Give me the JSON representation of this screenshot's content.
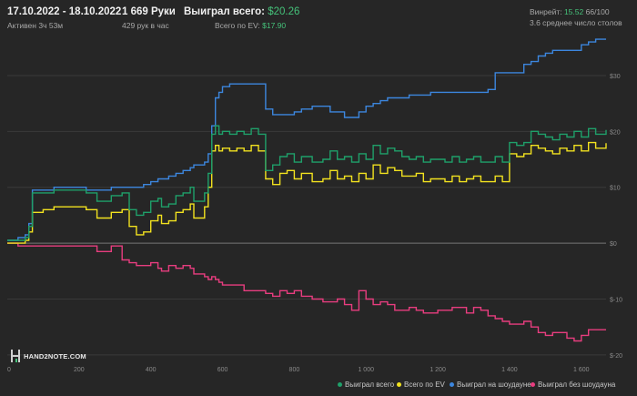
{
  "header": {
    "date_range": "17.10.2022 - 18.10.2022",
    "active": "Активен 3ч 53м",
    "hands_label": "1 669 Руки",
    "hands_rate": "429 рук в час",
    "won_total_label": "Выиграл всего:",
    "won_total_value": "$20.26",
    "ev_total_label": "Всего по EV:",
    "ev_total_value": "$17.90",
    "winrate_label": "Винрейт:",
    "winrate_value": "15.52",
    "winrate_hands": "66/100",
    "avg_tables": "3.6 среднее число столов"
  },
  "logo": {
    "text": "HAND2NOTE.COM"
  },
  "colors": {
    "background": "#262626",
    "grid": "#3a3a3a",
    "zero_line": "#777777",
    "won_total": "#1fa06a",
    "ev": "#f2e21f",
    "showdown": "#3c86de",
    "non_showdown": "#e83d7f",
    "green_text": "#45c27a"
  },
  "chart_data": {
    "type": "line",
    "title": "",
    "xlabel": "",
    "ylabel": "",
    "xlim": [
      0,
      1669
    ],
    "ylim": [
      -21,
      37
    ],
    "x_ticks": [
      0,
      200,
      400,
      600,
      800,
      1000,
      1200,
      1400,
      1600
    ],
    "x_tick_labels": [
      "0",
      "200",
      "400",
      "600",
      "800",
      "1 000",
      "1 200",
      "1 400",
      "1 600"
    ],
    "y_ticks": [
      -20,
      -10,
      0,
      10,
      20,
      30
    ],
    "y_tick_labels": [
      "$-20",
      "$-10",
      "$0",
      "$10",
      "$20",
      "$30"
    ],
    "grid": true,
    "legend_position": "bottom-right",
    "series": [
      {
        "name": "Выиграл всего",
        "key": "won_total",
        "x": [
          0,
          30,
          50,
          60,
          70,
          100,
          130,
          180,
          220,
          250,
          290,
          320,
          340,
          360,
          380,
          400,
          420,
          430,
          450,
          470,
          490,
          510,
          520,
          550,
          560,
          570,
          580,
          590,
          600,
          620,
          640,
          660,
          680,
          700,
          720,
          740,
          760,
          780,
          800,
          820,
          850,
          880,
          900,
          920,
          940,
          960,
          980,
          1000,
          1020,
          1040,
          1060,
          1080,
          1100,
          1120,
          1140,
          1160,
          1180,
          1200,
          1220,
          1240,
          1260,
          1280,
          1300,
          1320,
          1340,
          1360,
          1380,
          1400,
          1420,
          1440,
          1460,
          1480,
          1500,
          1520,
          1540,
          1560,
          1580,
          1600,
          1620,
          1640,
          1669
        ],
        "y": [
          0.5,
          0.5,
          1.0,
          3.0,
          9.0,
          9.0,
          9.5,
          9.5,
          9.0,
          7.5,
          8.5,
          9.0,
          6.0,
          5.0,
          5.5,
          7.5,
          8.0,
          6.5,
          7.0,
          8.5,
          9.0,
          10.0,
          7.5,
          9.0,
          12.5,
          19.5,
          21.0,
          19.5,
          20.0,
          19.5,
          20.0,
          19.5,
          20.5,
          19.5,
          13.0,
          14.0,
          15.5,
          16.0,
          14.5,
          15.5,
          14.5,
          15.0,
          16.5,
          15.0,
          15.5,
          14.5,
          16.0,
          15.0,
          17.5,
          16.0,
          17.0,
          16.5,
          15.5,
          15.0,
          15.5,
          14.5,
          15.0,
          15.0,
          14.5,
          15.5,
          14.5,
          15.0,
          15.5,
          14.5,
          14.5,
          15.5,
          14.5,
          18.0,
          17.5,
          18.0,
          20.0,
          19.5,
          19.0,
          18.5,
          19.5,
          19.0,
          20.0,
          19.0,
          20.5,
          19.5,
          20.26
        ]
      },
      {
        "name": "Всего по EV",
        "key": "ev",
        "x": [
          0,
          30,
          50,
          60,
          70,
          100,
          130,
          180,
          220,
          250,
          290,
          320,
          340,
          360,
          380,
          400,
          420,
          430,
          450,
          470,
          490,
          510,
          520,
          550,
          560,
          570,
          580,
          590,
          600,
          620,
          640,
          660,
          680,
          700,
          720,
          740,
          760,
          780,
          800,
          820,
          850,
          880,
          900,
          920,
          940,
          960,
          980,
          1000,
          1020,
          1040,
          1060,
          1080,
          1100,
          1120,
          1140,
          1160,
          1180,
          1200,
          1220,
          1240,
          1260,
          1280,
          1300,
          1320,
          1340,
          1360,
          1380,
          1400,
          1420,
          1440,
          1460,
          1480,
          1500,
          1520,
          1540,
          1560,
          1580,
          1600,
          1620,
          1640,
          1669
        ],
        "y": [
          0.0,
          0.0,
          0.5,
          2.0,
          5.5,
          6.0,
          6.5,
          6.5,
          6.0,
          4.5,
          5.5,
          6.0,
          3.0,
          1.5,
          2.0,
          4.0,
          5.0,
          3.5,
          4.0,
          5.5,
          6.0,
          7.0,
          4.5,
          6.5,
          10.0,
          16.5,
          17.5,
          16.5,
          17.0,
          16.5,
          17.0,
          16.5,
          17.5,
          16.5,
          11.5,
          10.5,
          12.5,
          13.0,
          11.5,
          12.5,
          11.0,
          11.5,
          13.0,
          11.5,
          12.0,
          11.0,
          12.5,
          11.5,
          14.0,
          12.5,
          13.5,
          13.0,
          12.0,
          12.0,
          12.5,
          11.0,
          11.5,
          11.5,
          11.0,
          12.0,
          11.0,
          11.5,
          12.0,
          11.0,
          11.0,
          12.0,
          11.0,
          16.0,
          15.5,
          16.0,
          17.5,
          17.0,
          16.5,
          16.0,
          17.0,
          16.5,
          17.5,
          16.5,
          18.0,
          17.0,
          17.9
        ]
      },
      {
        "name": "Выиграл на шоудауне",
        "key": "showdown",
        "x": [
          0,
          30,
          50,
          60,
          70,
          100,
          130,
          180,
          220,
          250,
          290,
          320,
          340,
          360,
          380,
          400,
          420,
          430,
          450,
          470,
          490,
          510,
          520,
          550,
          560,
          570,
          580,
          590,
          600,
          620,
          640,
          660,
          680,
          700,
          720,
          740,
          760,
          780,
          800,
          820,
          850,
          880,
          900,
          920,
          940,
          960,
          980,
          1000,
          1020,
          1040,
          1060,
          1080,
          1100,
          1120,
          1140,
          1160,
          1180,
          1200,
          1220,
          1240,
          1260,
          1280,
          1300,
          1320,
          1340,
          1360,
          1380,
          1400,
          1420,
          1440,
          1460,
          1480,
          1500,
          1520,
          1540,
          1560,
          1580,
          1600,
          1620,
          1640,
          1669
        ],
        "y": [
          0.5,
          1.0,
          1.5,
          3.5,
          9.5,
          9.5,
          10.0,
          10.0,
          9.5,
          9.5,
          10.0,
          10.0,
          10.0,
          10.0,
          10.5,
          11.0,
          11.5,
          11.5,
          12.0,
          12.5,
          13.0,
          13.5,
          14.0,
          14.5,
          16.0,
          21.0,
          26.0,
          27.0,
          28.0,
          28.5,
          28.5,
          28.5,
          28.5,
          28.5,
          24.0,
          23.0,
          23.0,
          23.0,
          23.5,
          24.0,
          24.5,
          24.5,
          23.5,
          23.5,
          22.5,
          22.5,
          23.5,
          24.5,
          25.0,
          25.5,
          26.0,
          26.0,
          26.0,
          26.5,
          26.5,
          26.5,
          27.0,
          27.0,
          27.0,
          27.0,
          27.0,
          27.0,
          27.0,
          27.0,
          27.5,
          30.5,
          30.5,
          30.5,
          30.5,
          32.0,
          32.5,
          33.5,
          34.0,
          34.5,
          34.5,
          34.5,
          34.5,
          35.5,
          36.0,
          36.5,
          36.5
        ]
      },
      {
        "name": "Выиграл без шоудауна",
        "key": "non_showdown",
        "x": [
          0,
          30,
          50,
          60,
          70,
          100,
          130,
          180,
          220,
          250,
          290,
          320,
          340,
          360,
          380,
          400,
          420,
          430,
          450,
          470,
          490,
          510,
          520,
          550,
          560,
          570,
          580,
          590,
          600,
          620,
          640,
          660,
          680,
          700,
          720,
          740,
          760,
          780,
          800,
          820,
          850,
          880,
          900,
          920,
          940,
          960,
          980,
          1000,
          1020,
          1040,
          1060,
          1080,
          1100,
          1120,
          1140,
          1160,
          1180,
          1200,
          1220,
          1240,
          1260,
          1280,
          1300,
          1320,
          1340,
          1360,
          1380,
          1400,
          1420,
          1440,
          1460,
          1480,
          1500,
          1520,
          1540,
          1560,
          1580,
          1600,
          1620,
          1640,
          1669
        ],
        "y": [
          0.0,
          -0.5,
          -0.5,
          -0.5,
          -0.5,
          -0.5,
          -0.5,
          -0.5,
          -0.5,
          -1.5,
          -0.5,
          -3.0,
          -3.5,
          -4.0,
          -4.0,
          -3.5,
          -4.5,
          -5.0,
          -4.0,
          -4.5,
          -4.0,
          -4.5,
          -5.5,
          -6.0,
          -6.5,
          -6.0,
          -6.5,
          -7.0,
          -7.5,
          -7.5,
          -7.5,
          -8.5,
          -8.5,
          -8.5,
          -9.0,
          -9.5,
          -8.5,
          -9.0,
          -8.5,
          -9.5,
          -10.0,
          -10.5,
          -10.5,
          -10.0,
          -11.0,
          -12.0,
          -8.5,
          -10.0,
          -11.0,
          -10.5,
          -11.0,
          -12.0,
          -12.0,
          -11.5,
          -12.0,
          -12.5,
          -12.5,
          -12.0,
          -12.0,
          -11.5,
          -11.5,
          -12.5,
          -11.5,
          -12.0,
          -13.0,
          -13.5,
          -14.0,
          -14.5,
          -14.5,
          -14.0,
          -15.0,
          -16.0,
          -16.5,
          -16.0,
          -16.0,
          -17.0,
          -17.5,
          -16.5,
          -15.5,
          -15.5,
          -15.5
        ]
      }
    ]
  }
}
